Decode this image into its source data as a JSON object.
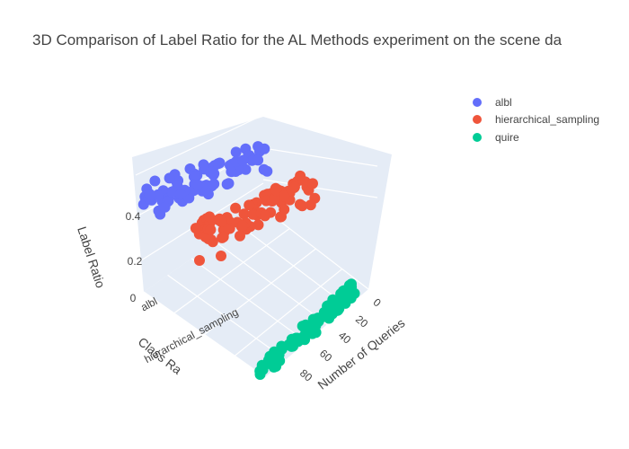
{
  "chart_data": {
    "type": "scatter3d",
    "title": "3D Comparison of Label Ratio for the AL Methods experiment on the scene da",
    "axes": {
      "x": {
        "label": "Number of Queries",
        "ticks": [
          "0",
          "20",
          "40",
          "60",
          "80"
        ],
        "range": [
          0,
          90
        ]
      },
      "y": {
        "label": "Class Ra",
        "ticks": [
          "albl",
          "hierarchical_sampling"
        ]
      },
      "z": {
        "label": "Label Ratio",
        "ticks": [
          "0",
          "0.2",
          "0.4"
        ],
        "range": [
          0,
          0.6
        ]
      }
    },
    "grid": true,
    "legend_position": "top-right",
    "series": [
      {
        "name": "albl",
        "color": "#636efa",
        "approx_queries": [
          1,
          90
        ],
        "approx_label_ratio": [
          0.3,
          0.55
        ]
      },
      {
        "name": "hierarchical_sampling",
        "color": "#ef553b",
        "approx_queries": [
          1,
          90
        ],
        "approx_label_ratio": [
          0.15,
          0.5
        ]
      },
      {
        "name": "quire",
        "color": "#00cc96",
        "approx_queries": [
          1,
          90
        ],
        "approx_label_ratio": [
          0.0,
          0.0
        ]
      }
    ]
  }
}
